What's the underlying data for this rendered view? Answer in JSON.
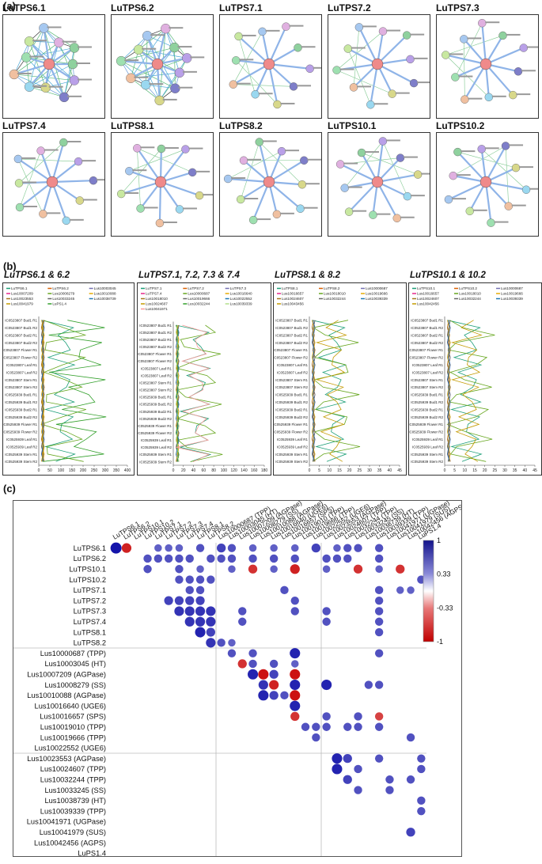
{
  "panel_a": {
    "label": "(a)",
    "networks": [
      {
        "title": "LuTPS6.1",
        "style": "dense",
        "center": "#ef8a8a"
      },
      {
        "title": "LuTPS6.2",
        "style": "dense",
        "center": "#ef8a8a"
      },
      {
        "title": "LuTPS7.1",
        "style": "star",
        "center": "#ef8a8a"
      },
      {
        "title": "LuTPS7.2",
        "style": "star",
        "center": "#ef8a8a"
      },
      {
        "title": "LuTPS7.3",
        "style": "star",
        "center": "#ef8a8a"
      },
      {
        "title": "LuTPS7.4",
        "style": "star",
        "center": "#ef8a8a"
      },
      {
        "title": "LuTPS8.1",
        "style": "star",
        "center": "#ef8a8a"
      },
      {
        "title": "LuTPS8.2",
        "style": "star",
        "center": "#ef8a8a"
      },
      {
        "title": "LuTPS10.1",
        "style": "star",
        "center": "#ef8a8a"
      },
      {
        "title": "LuTPS10.2",
        "style": "star",
        "center": "#ef8a8a"
      }
    ],
    "node_colors": [
      "#8fd19e",
      "#b9a0e8",
      "#7e7ec9",
      "#d8d88a",
      "#9ad8f0",
      "#f0c0a0",
      "#9ee0b0",
      "#c8e8a0",
      "#a6c8f0",
      "#e0b0e0"
    ]
  },
  "panel_b": {
    "label": "(b)",
    "samples": [
      "IC0523807 Bud1 R1",
      "IC0523807 Bud1 R2",
      "IC0523807 Bud2 R1",
      "IC0523807 Bud2 R2",
      "IC0523807 Flower R1",
      "IC0523807 Flower R2",
      "IC0523807 Leaf R1",
      "IC0523807 Leaf R2",
      "IC0523807 Stem R1",
      "IC0523807 Stem R2",
      "IC0525939 Bud1 R1",
      "IC0525939 Bud1 R2",
      "IC0525939 Bud2 R1",
      "IC0525939 Bud2 R2",
      "IC0525939 Flower R1",
      "IC0525939 Flower R2",
      "IC0525939 Leaf R1",
      "IC0525939 Leaf R2",
      "IC0525939 Stem R1",
      "IC0525939 Stem R2"
    ],
    "charts": [
      {
        "title": "LuTPS6.1 & 6.2",
        "type": "line",
        "legend": [
          "LuTPS6.1",
          "LuTPS6.2",
          "Lus10003045",
          "Lus10007209",
          "Lus10008279",
          "Lus10010088",
          "Lus10023553",
          "Lus10033245",
          "Lus10038739",
          "Lus10041979",
          "LuPS1.4"
        ],
        "xticks": [
          "0",
          "50",
          "100",
          "150",
          "200",
          "250",
          "300",
          "350",
          "400"
        ],
        "xlim": [
          0,
          400
        ]
      },
      {
        "title": "LuTPS7.1, 7.2, 7.3 & 7.4",
        "type": "line",
        "legend": [
          "LuTPS7.1",
          "LuTPS7.2",
          "LuTPS7.3",
          "LuTPS7.4",
          "Lus10000687",
          "Lus10016640",
          "Lus10018010",
          "Lus10019666",
          "Lus10022552",
          "Lus10024607",
          "Lus10032244",
          "Lus10039339",
          "Lus10041971"
        ],
        "xticks": [
          "0",
          "20",
          "40",
          "60",
          "80",
          "100",
          "120",
          "140",
          "160",
          "180"
        ],
        "xlim": [
          0,
          180
        ]
      },
      {
        "title": "LuTPS8.1 & 8.2",
        "type": "line",
        "legend": [
          "LuTPS8.1",
          "LuTPS8.2",
          "Lus10000687",
          "Lus10016657",
          "Lus10018010",
          "Lus10019666",
          "Lus10024607",
          "Lus10032244",
          "Lus10039339",
          "Lus10043456"
        ],
        "xticks": [
          "0",
          "5",
          "10",
          "15",
          "20",
          "25",
          "30",
          "35",
          "40",
          "45"
        ],
        "xlim": [
          0,
          45
        ]
      },
      {
        "title": "LuTPS10.1 & 10.2",
        "type": "line",
        "legend": [
          "LuTPS10.1",
          "LuTPS10.2",
          "Lus10000687",
          "Lus10016657",
          "Lus10018010",
          "Lus10019666",
          "Lus10024607",
          "Lus10032244",
          "Lus10039339",
          "Lus10042456"
        ],
        "xticks": [
          "0",
          "5",
          "10",
          "15",
          "20",
          "25",
          "30",
          "35",
          "40",
          "45"
        ],
        "xlim": [
          0,
          45
        ]
      }
    ]
  },
  "panel_c": {
    "label": "(c)",
    "columns": [
      "LuTPS6.1",
      "LuTPS6.2",
      "LuTPS10.1",
      "LuTPS10.2",
      "LuTPS7.1",
      "LuTPS7.2",
      "LuTPS7.3",
      "LuTPS7.4",
      "LuTPS8.1",
      "LuTPS8.2",
      "Lus10000687 (TPP)",
      "Lus10003045 (HT)",
      "Lus10007209 (AGPase)",
      "Lus10008279 (SS)",
      "Lus10010088 (AGPase)",
      "Lus10016640 (UGE6)",
      "Lus10016657 (SPS)",
      "Lus10019010 (TPP)",
      "Lus10019666 (TPP)",
      "Lus10022552 (UGE6)",
      "Lus10023553 (AGPase)",
      "Lus10024607 (TPP)",
      "Lus10032244 (TPP)",
      "Lus10033245 (SS)",
      "Lus10038739 (HT)",
      "Lus10039339 (TPP)",
      "Lus10041971 (UGPase)",
      "Lus10041979 (SUS)",
      "Lus10042456 (AGPS)",
      "LuPS1.4"
    ],
    "rows": [
      "LuTPS6.1",
      "LuTPS6.2",
      "LuTPS10.1",
      "LuTPS10.2",
      "LuTPS7.1",
      "LuTPS7.2",
      "LuTPS7.3",
      "LuTPS7.4",
      "LuTPS8.1",
      "LuTPS8.2",
      "Lus10000687 (TPP)",
      "Lus10003045 (HT)",
      "Lus10007209 (AGPase)",
      "Lus10008279 (SS)",
      "Lus10010088 (AGPase)",
      "Lus10016640 (UGE6)",
      "Lus10016657 (SPS)",
      "Lus10019010 (TPP)",
      "Lus10019666 (TPP)",
      "Lus10022552 (UGE6)",
      "Lus10023553 (AGPase)",
      "Lus10024607 (TPP)",
      "Lus10032244 (TPP)",
      "Lus10033245 (SS)",
      "Lus10038739 (HT)",
      "Lus10039339 (TPP)",
      "Lus10041971 (UGPase)",
      "Lus10041979 (SUS)",
      "Lus10042456 (AGPS)",
      "LuPS1.4"
    ],
    "colorbar_ticks": [
      "1",
      "0.33",
      "-0.33",
      "-1"
    ]
  },
  "chart_data": {
    "type": "heatmap",
    "title": "",
    "rows": [
      "LuTPS6.1",
      "LuTPS6.2",
      "LuTPS10.1",
      "LuTPS10.2",
      "LuTPS7.1",
      "LuTPS7.2",
      "LuTPS7.3",
      "LuTPS7.4",
      "LuTPS8.1",
      "LuTPS8.2",
      "Lus10000687 (TPP)",
      "Lus10003045 (HT)",
      "Lus10007209 (AGPase)",
      "Lus10008279 (SS)",
      "Lus10010088 (AGPase)",
      "Lus10016640 (UGE6)",
      "Lus10016657 (SPS)",
      "Lus10019010 (TPP)",
      "Lus10019666 (TPP)",
      "Lus10022552 (UGE6)",
      "Lus10023553 (AGPase)",
      "Lus10024607 (TPP)",
      "Lus10032244 (TPP)",
      "Lus10033245 (SS)",
      "Lus10038739 (HT)",
      "Lus10039339 (TPP)",
      "Lus10041971 (UGPase)",
      "Lus10041979 (SUS)",
      "Lus10042456 (AGPS)",
      "LuPS1.4"
    ],
    "range": [
      -1,
      1
    ],
    "cells": [
      [
        0,
        0,
        1.0
      ],
      [
        0,
        1,
        -0.8
      ],
      [
        0,
        4,
        0.5
      ],
      [
        0,
        5,
        0.5
      ],
      [
        0,
        6,
        0.5
      ],
      [
        0,
        8,
        0.6
      ],
      [
        0,
        10,
        0.7
      ],
      [
        0,
        11,
        0.6
      ],
      [
        0,
        13,
        0.5
      ],
      [
        0,
        15,
        0.5
      ],
      [
        0,
        17,
        0.5
      ],
      [
        0,
        19,
        0.7
      ],
      [
        0,
        21,
        0.5
      ],
      [
        0,
        22,
        0.6
      ],
      [
        0,
        23,
        0.6
      ],
      [
        0,
        25,
        0.6
      ],
      [
        1,
        3,
        0.6
      ],
      [
        1,
        4,
        0.6
      ],
      [
        1,
        5,
        0.6
      ],
      [
        1,
        6,
        0.6
      ],
      [
        1,
        7,
        0.6
      ],
      [
        1,
        9,
        0.6
      ],
      [
        1,
        10,
        0.6
      ],
      [
        1,
        11,
        0.6
      ],
      [
        1,
        13,
        0.6
      ],
      [
        1,
        15,
        0.6
      ],
      [
        1,
        17,
        0.6
      ],
      [
        1,
        20,
        0.6
      ],
      [
        1,
        21,
        0.6
      ],
      [
        1,
        22,
        0.6
      ],
      [
        1,
        25,
        0.6
      ],
      [
        2,
        3,
        0.6
      ],
      [
        2,
        6,
        0.6
      ],
      [
        2,
        8,
        0.5
      ],
      [
        2,
        11,
        0.5
      ],
      [
        2,
        13,
        -0.7
      ],
      [
        2,
        15,
        0.5
      ],
      [
        2,
        17,
        -0.8
      ],
      [
        2,
        20,
        0.5
      ],
      [
        2,
        23,
        -0.7
      ],
      [
        2,
        25,
        0.5
      ],
      [
        2,
        27,
        -0.7
      ],
      [
        3,
        6,
        0.6
      ],
      [
        3,
        7,
        0.6
      ],
      [
        3,
        8,
        0.6
      ],
      [
        3,
        9,
        0.6
      ],
      [
        3,
        29,
        0.6
      ],
      [
        4,
        7,
        0.6
      ],
      [
        4,
        8,
        0.6
      ],
      [
        4,
        16,
        0.6
      ],
      [
        4,
        25,
        0.6
      ],
      [
        4,
        27,
        0.5
      ],
      [
        4,
        28,
        0.5
      ],
      [
        5,
        5,
        0.7
      ],
      [
        5,
        6,
        0.7
      ],
      [
        5,
        7,
        0.7
      ],
      [
        5,
        8,
        0.7
      ],
      [
        5,
        17,
        0.6
      ],
      [
        5,
        25,
        0.6
      ],
      [
        6,
        6,
        0.8
      ],
      [
        6,
        7,
        0.8
      ],
      [
        6,
        8,
        0.8
      ],
      [
        6,
        9,
        0.8
      ],
      [
        6,
        12,
        0.6
      ],
      [
        6,
        17,
        0.6
      ],
      [
        6,
        20,
        0.6
      ],
      [
        6,
        25,
        0.6
      ],
      [
        7,
        7,
        0.8
      ],
      [
        7,
        8,
        0.8
      ],
      [
        7,
        9,
        0.8
      ],
      [
        7,
        12,
        0.6
      ],
      [
        7,
        20,
        0.6
      ],
      [
        7,
        25,
        0.6
      ],
      [
        8,
        8,
        0.9
      ],
      [
        8,
        9,
        0.7
      ],
      [
        8,
        25,
        0.6
      ],
      [
        9,
        9,
        0.8
      ],
      [
        9,
        10,
        0.6
      ],
      [
        9,
        11,
        0.5
      ],
      [
        10,
        11,
        0.6
      ],
      [
        10,
        13,
        0.6
      ],
      [
        10,
        17,
        0.9
      ],
      [
        10,
        25,
        0.6
      ],
      [
        11,
        12,
        -0.7
      ],
      [
        11,
        13,
        0.6
      ],
      [
        11,
        15,
        0.6
      ],
      [
        11,
        17,
        0.5
      ],
      [
        12,
        13,
        0.9
      ],
      [
        12,
        14,
        -0.9
      ],
      [
        12,
        15,
        0.7
      ],
      [
        12,
        17,
        -0.9
      ],
      [
        13,
        14,
        0.8
      ],
      [
        13,
        15,
        -0.8
      ],
      [
        13,
        17,
        0.9
      ],
      [
        13,
        20,
        0.9
      ],
      [
        13,
        24,
        0.6
      ],
      [
        13,
        25,
        0.6
      ],
      [
        14,
        14,
        0.9
      ],
      [
        14,
        15,
        0.7
      ],
      [
        14,
        16,
        0.6
      ],
      [
        14,
        17,
        -0.9
      ],
      [
        15,
        17,
        0.9
      ],
      [
        16,
        17,
        -0.7
      ],
      [
        16,
        20,
        0.6
      ],
      [
        16,
        23,
        0.6
      ],
      [
        16,
        25,
        -0.6
      ],
      [
        17,
        18,
        0.6
      ],
      [
        17,
        19,
        0.6
      ],
      [
        17,
        20,
        0.6
      ],
      [
        17,
        22,
        0.6
      ],
      [
        17,
        23,
        0.6
      ],
      [
        17,
        25,
        0.6
      ],
      [
        18,
        19,
        0.6
      ],
      [
        18,
        28,
        0.6
      ],
      [
        20,
        21,
        0.9
      ],
      [
        20,
        22,
        0.7
      ],
      [
        20,
        25,
        0.6
      ],
      [
        20,
        29,
        0.6
      ],
      [
        21,
        21,
        0.9
      ],
      [
        21,
        23,
        0.6
      ],
      [
        21,
        29,
        0.6
      ],
      [
        22,
        22,
        0.7
      ],
      [
        22,
        26,
        0.6
      ],
      [
        22,
        28,
        0.6
      ],
      [
        23,
        23,
        0.6
      ],
      [
        23,
        26,
        0.6
      ],
      [
        24,
        29,
        0.6
      ],
      [
        25,
        29,
        0.6
      ],
      [
        27,
        28,
        0.7
      ]
    ]
  }
}
